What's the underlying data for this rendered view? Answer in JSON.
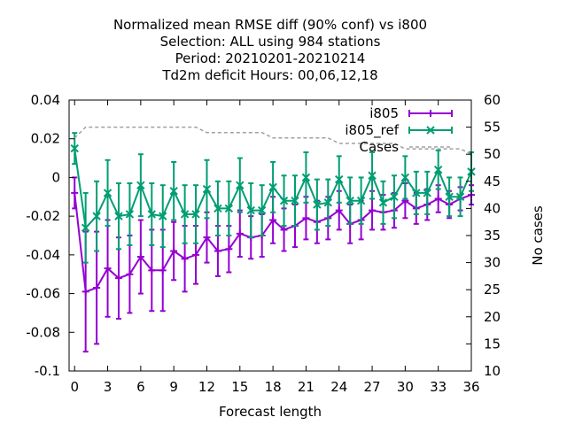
{
  "chart_data": {
    "type": "line",
    "title_lines": [
      "Normalized mean RMSE diff (90% conf) vs i800",
      "Selection: ALL using   984 stations",
      "Period: 20210201-20210214",
      "Td2m deficit   Hours:  00,06,12,18"
    ],
    "xlabel": "Forecast length",
    "ylabel": "",
    "y2label": "No cases",
    "xlim": [
      -0.5,
      36
    ],
    "ylim": [
      -0.1,
      0.04
    ],
    "y2lim": [
      10,
      60
    ],
    "xticks": [
      0,
      3,
      6,
      9,
      12,
      15,
      18,
      21,
      24,
      27,
      30,
      33,
      36
    ],
    "yticks": [
      -0.1,
      -0.08,
      -0.06,
      -0.04,
      -0.02,
      0,
      0.02,
      0.04
    ],
    "ytick_labels": [
      "-0.1",
      "-0.08",
      "-0.06",
      "-0.04",
      "-0.02",
      "0",
      "0.02",
      "0.04"
    ],
    "y2ticks": [
      10,
      15,
      20,
      25,
      30,
      35,
      40,
      45,
      50,
      55,
      60
    ],
    "grid": false,
    "legend_position": "top-right",
    "series": [
      {
        "name": "i805",
        "color": "#9400d3",
        "marker": "plus",
        "x": [
          0,
          1,
          2,
          3,
          4,
          5,
          6,
          7,
          8,
          9,
          10,
          11,
          12,
          13,
          14,
          15,
          16,
          17,
          18,
          19,
          20,
          21,
          22,
          23,
          24,
          25,
          26,
          27,
          28,
          29,
          30,
          31,
          32,
          33,
          34,
          35,
          36
        ],
        "y": [
          -0.008,
          -0.059,
          -0.057,
          -0.047,
          -0.052,
          -0.05,
          -0.041,
          -0.048,
          -0.048,
          -0.038,
          -0.042,
          -0.04,
          -0.031,
          -0.038,
          -0.037,
          -0.029,
          -0.031,
          -0.03,
          -0.022,
          -0.027,
          -0.025,
          -0.021,
          -0.023,
          -0.021,
          -0.017,
          -0.024,
          -0.022,
          -0.017,
          -0.018,
          -0.017,
          -0.012,
          -0.016,
          -0.014,
          -0.011,
          -0.014,
          -0.011,
          -0.009
        ],
        "err": [
          0.008,
          0.031,
          0.029,
          0.025,
          0.021,
          0.02,
          0.019,
          0.021,
          0.021,
          0.015,
          0.017,
          0.015,
          0.013,
          0.013,
          0.012,
          0.012,
          0.011,
          0.011,
          0.012,
          0.011,
          0.011,
          0.011,
          0.011,
          0.011,
          0.01,
          0.01,
          0.01,
          0.01,
          0.009,
          0.009,
          0.009,
          0.008,
          0.008,
          0.007,
          0.007,
          0.006,
          0.005
        ]
      },
      {
        "name": "i805_ref",
        "color": "#009e73",
        "marker": "cross",
        "x": [
          0,
          1,
          2,
          3,
          4,
          5,
          6,
          7,
          8,
          9,
          10,
          11,
          12,
          13,
          14,
          15,
          16,
          17,
          18,
          19,
          20,
          21,
          22,
          23,
          24,
          25,
          26,
          27,
          28,
          29,
          30,
          31,
          32,
          33,
          34,
          35,
          36
        ],
        "y": [
          0.015,
          -0.026,
          -0.02,
          -0.008,
          -0.02,
          -0.019,
          -0.004,
          -0.019,
          -0.02,
          -0.007,
          -0.019,
          -0.019,
          -0.006,
          -0.016,
          -0.016,
          -0.004,
          -0.017,
          -0.017,
          -0.005,
          -0.012,
          -0.012,
          0,
          -0.014,
          -0.013,
          -0.001,
          -0.012,
          -0.012,
          0.001,
          -0.013,
          -0.01,
          0,
          -0.008,
          -0.008,
          0.004,
          -0.01,
          -0.01,
          0.003
        ],
        "err": [
          0.008,
          0.018,
          0.018,
          0.017,
          0.017,
          0.016,
          0.016,
          0.016,
          0.016,
          0.015,
          0.015,
          0.015,
          0.015,
          0.014,
          0.014,
          0.014,
          0.014,
          0.013,
          0.013,
          0.013,
          0.013,
          0.013,
          0.013,
          0.012,
          0.012,
          0.012,
          0.012,
          0.012,
          0.011,
          0.011,
          0.011,
          0.011,
          0.011,
          0.01,
          0.01,
          0.01,
          0.01
        ]
      },
      {
        "name": "Cases",
        "color": "#a0a0a0",
        "axis": "y2",
        "style": "dashed",
        "x": [
          0,
          1,
          2,
          3,
          4,
          5,
          6,
          7,
          8,
          9,
          10,
          11,
          12,
          13,
          14,
          15,
          16,
          17,
          18,
          19,
          20,
          21,
          22,
          23,
          24,
          25,
          26,
          27,
          28,
          29,
          30,
          31,
          32,
          33,
          34,
          35,
          36
        ],
        "y": [
          53,
          55,
          55,
          55,
          55,
          55,
          55,
          55,
          55,
          55,
          55,
          55,
          54,
          54,
          54,
          54,
          54,
          54,
          53,
          53,
          53,
          53,
          53,
          53,
          52,
          52,
          52,
          52,
          52,
          52,
          51,
          51,
          51,
          51,
          51,
          51,
          50
        ]
      }
    ]
  }
}
